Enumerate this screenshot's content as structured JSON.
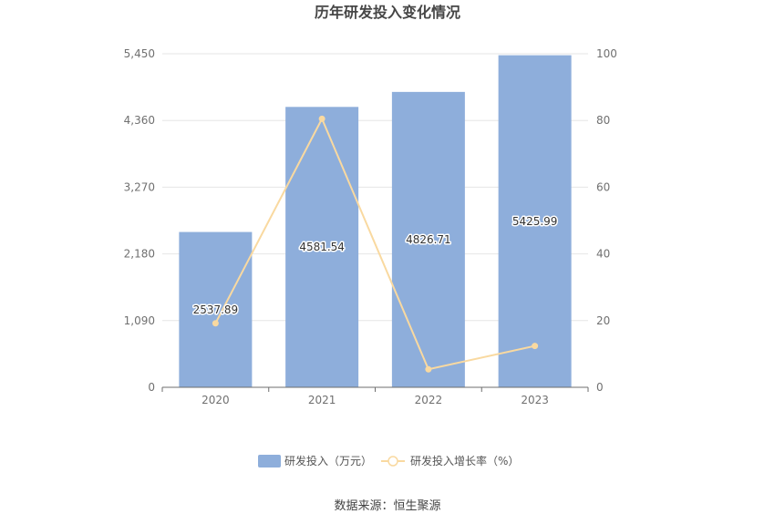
{
  "chart_data": {
    "type": "bar",
    "title": "历年研发投入变化情况",
    "categories": [
      "2020",
      "2021",
      "2022",
      "2023"
    ],
    "series": [
      {
        "name": "研发投入（万元）",
        "type": "bar",
        "axis": "left",
        "color": "#8eaedb",
        "values": [
          2537.89,
          4581.54,
          4826.71,
          5425.99
        ],
        "labels": [
          "2537.89",
          "4581.54",
          "4826.71",
          "5425.99"
        ]
      },
      {
        "name": "研发投入增长率（%）",
        "type": "line",
        "axis": "right",
        "color": "#f9d9a0",
        "values": [
          19.2,
          80.5,
          5.4,
          12.4
        ]
      }
    ],
    "y_left": {
      "min": 0,
      "max": 5450,
      "ticks": [
        "0",
        "1,090",
        "2,180",
        "3,270",
        "4,360",
        "5,450"
      ],
      "tick_values": [
        0,
        1090,
        2180,
        3270,
        4360,
        5450
      ]
    },
    "y_right": {
      "min": 0,
      "max": 100,
      "ticks": [
        "0",
        "20",
        "40",
        "60",
        "80",
        "100"
      ],
      "tick_values": [
        0,
        20,
        40,
        60,
        80,
        100
      ]
    },
    "grid": true,
    "legend": "bottom-center",
    "source": "数据来源：恒生聚源"
  }
}
